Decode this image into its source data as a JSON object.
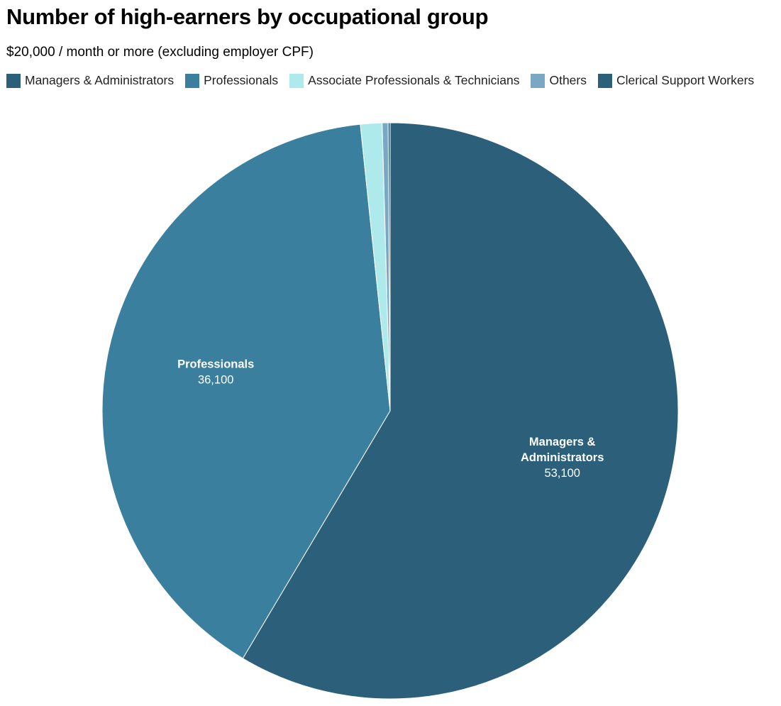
{
  "chart_data": {
    "type": "pie",
    "title": "Number of high-earners by occupational group",
    "subtitle": "$20,000 / month or more (excluding employer CPF)",
    "legend_position": "top",
    "start_angle": "12 o'clock, clockwise",
    "slices": [
      {
        "name": "Managers & Administrators",
        "label_lines": [
          "Managers &",
          "Administrators"
        ],
        "value": 53100,
        "value_label": "53,100",
        "color": "#2b5f7a"
      },
      {
        "name": "Professionals",
        "label_lines": [
          "Professionals"
        ],
        "value": 36100,
        "value_label": "36,100",
        "color": "#3b7f9f"
      },
      {
        "name": "Associate Professionals & Technicians",
        "label_lines": [],
        "value": 1100,
        "value_label": "",
        "color": "#aeeaec"
      },
      {
        "name": "Others",
        "label_lines": [],
        "value": 300,
        "value_label": "",
        "color": "#7aa8c4"
      },
      {
        "name": "Clerical Support Workers",
        "label_lines": [],
        "value": 100,
        "value_label": "",
        "color": "#2b5f7a"
      }
    ]
  }
}
